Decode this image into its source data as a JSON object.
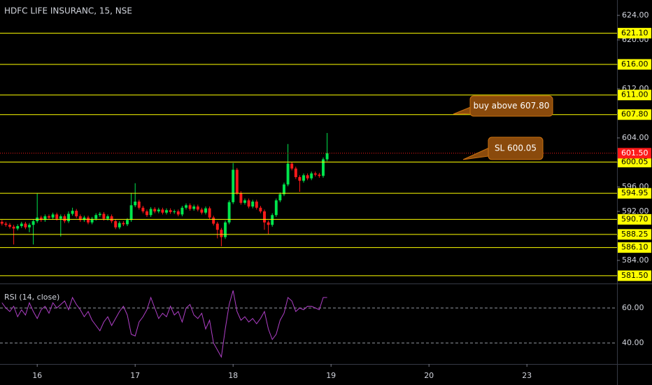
{
  "chart_data": [
    {
      "type": "candlestick",
      "title": "HDFC LIFE INSURANC, 15, NSE",
      "open": [
        590.3,
        590.0,
        589.8,
        589.5,
        589.2,
        589.6,
        590.0,
        589.4,
        589.8,
        590.4,
        591.0,
        590.6,
        591.2,
        591.0,
        591.5,
        590.8,
        591.2,
        590.4,
        591.6,
        592.1,
        591.2,
        590.6,
        591.0,
        590.2,
        590.8,
        591.4,
        591.6,
        590.8,
        591.2,
        590.4,
        589.4,
        590.1,
        589.9,
        590.6,
        593.0,
        593.6,
        592.6,
        592.0,
        591.4,
        592.4,
        592.0,
        592.3,
        591.8,
        592.2,
        591.9,
        592.0,
        591.5,
        592.6,
        593.0,
        592.4,
        592.8,
        592.3,
        591.8,
        592.5,
        591.0,
        590.0,
        589.0,
        587.8,
        590.2,
        593.5,
        598.8,
        595.0,
        593.4,
        593.8,
        592.8,
        593.6,
        592.6,
        592.0,
        590.2,
        589.8,
        591.4,
        593.8,
        594.8,
        596.4,
        599.8,
        599.0,
        597.6,
        597.0,
        597.9,
        597.4,
        598.2,
        598.0,
        597.8,
        600.5
      ],
      "high": [
        590.6,
        590.3,
        590.1,
        589.8,
        589.9,
        590.3,
        590.3,
        590.1,
        590.7,
        594.9,
        591.3,
        591.5,
        591.5,
        591.8,
        591.8,
        591.5,
        591.5,
        592.0,
        592.6,
        592.4,
        591.5,
        591.3,
        591.3,
        591.1,
        591.7,
        591.9,
        591.9,
        591.5,
        591.5,
        590.7,
        590.4,
        590.4,
        590.9,
        595.0,
        596.6,
        593.9,
        592.9,
        592.3,
        592.7,
        592.7,
        592.6,
        592.6,
        592.5,
        592.5,
        592.3,
        592.3,
        592.9,
        593.3,
        593.3,
        593.1,
        593.1,
        592.6,
        592.8,
        592.8,
        591.3,
        590.3,
        589.3,
        590.5,
        593.8,
        599.9,
        599.1,
        595.3,
        594.1,
        594.1,
        593.9,
        593.9,
        592.9,
        592.3,
        590.5,
        591.7,
        594.1,
        595.1,
        596.7,
        603.0,
        600.1,
        599.3,
        597.9,
        598.2,
        598.2,
        598.5,
        598.5,
        598.3,
        600.8,
        604.8
      ],
      "low": [
        589.7,
        589.5,
        589.2,
        586.6,
        588.9,
        589.3,
        589.1,
        588.6,
        586.6,
        590.1,
        590.3,
        590.3,
        590.7,
        590.7,
        590.5,
        587.9,
        590.1,
        590.1,
        591.3,
        590.9,
        590.3,
        590.3,
        589.9,
        589.9,
        590.5,
        591.1,
        590.5,
        590.5,
        590.1,
        589.1,
        589.1,
        589.6,
        589.6,
        590.3,
        592.7,
        592.3,
        591.7,
        591.1,
        591.1,
        591.7,
        591.7,
        591.5,
        591.5,
        591.6,
        591.6,
        591.2,
        591.2,
        592.3,
        592.1,
        592.1,
        592.0,
        591.5,
        591.5,
        590.7,
        589.7,
        587.6,
        586.3,
        587.5,
        589.9,
        593.2,
        594.7,
        593.1,
        593.1,
        592.5,
        592.5,
        592.3,
        591.7,
        589.0,
        588.3,
        589.5,
        591.1,
        593.5,
        594.5,
        596.1,
        598.7,
        597.3,
        595.2,
        596.7,
        597.1,
        597.1,
        597.7,
        597.5,
        597.5,
        600.2
      ],
      "close": [
        590.0,
        589.8,
        589.5,
        589.2,
        589.6,
        590.0,
        589.4,
        589.8,
        590.4,
        591.0,
        590.6,
        591.2,
        591.0,
        591.5,
        590.8,
        591.2,
        590.4,
        591.6,
        592.1,
        591.2,
        590.6,
        591.0,
        590.2,
        590.8,
        591.4,
        591.6,
        590.8,
        591.2,
        590.4,
        589.4,
        590.1,
        589.9,
        590.6,
        593.0,
        593.6,
        592.6,
        592.0,
        591.4,
        592.4,
        592.0,
        592.3,
        591.8,
        592.2,
        591.9,
        592.0,
        591.5,
        592.6,
        593.0,
        592.4,
        592.8,
        592.3,
        591.8,
        592.5,
        591.0,
        590.0,
        589.0,
        587.8,
        590.2,
        593.5,
        598.8,
        595.0,
        593.4,
        593.8,
        592.8,
        593.6,
        592.6,
        592.0,
        590.2,
        589.8,
        591.4,
        593.8,
        594.8,
        596.4,
        599.8,
        599.0,
        597.6,
        597.0,
        597.9,
        597.4,
        598.2,
        598.0,
        597.8,
        600.5,
        601.5
      ],
      "up_color": "#00e64d",
      "down_color": "#ff1a1a",
      "ylim": [
        580.23,
        626.51
      ],
      "yticks": [
        {
          "value": 624,
          "label": "624.00"
        },
        {
          "value": 620,
          "label": "620.00"
        },
        {
          "value": 616,
          "label": "616.00"
        },
        {
          "value": 612,
          "label": "612.00"
        },
        {
          "value": 608,
          "label": "608.00"
        },
        {
          "value": 604,
          "label": "604.00"
        },
        {
          "value": 600,
          "label": "600.00"
        },
        {
          "value": 596,
          "label": "596.00"
        },
        {
          "value": 592,
          "label": "592.00"
        },
        {
          "value": 588,
          "label": "588.00"
        },
        {
          "value": 584,
          "label": "584.00"
        }
      ],
      "xlim": [
        -0.5,
        157
      ],
      "xticks": [
        {
          "value": 9,
          "label": "16"
        },
        {
          "value": 34,
          "label": "17"
        },
        {
          "value": 59,
          "label": "18"
        },
        {
          "value": 84,
          "label": "19"
        },
        {
          "value": 109,
          "label": "20"
        },
        {
          "value": 134,
          "label": "23"
        }
      ],
      "levels": [
        {
          "value": 621.1,
          "label": "621.10"
        },
        {
          "value": 616,
          "label": "616.00"
        },
        {
          "value": 611,
          "label": "611.00"
        },
        {
          "value": 607.8,
          "label": "607.80"
        },
        {
          "value": 600.05,
          "label": "600.05"
        },
        {
          "value": 594.95,
          "label": "594.95"
        },
        {
          "value": 590.7,
          "label": "590.70"
        },
        {
          "value": 588.25,
          "label": "588.25"
        },
        {
          "value": 586.1,
          "label": "586.10"
        },
        {
          "value": 581.5,
          "label": "581.50"
        }
      ],
      "level_color": "#ffff00",
      "last_price": {
        "value": 601.5,
        "label": "601.50"
      },
      "annotations": [
        "buy above 607.80",
        "SL 600.05"
      ]
    },
    {
      "type": "line",
      "title": "RSI (14, close)",
      "values": [
        63,
        60,
        58,
        61,
        55,
        59,
        56,
        63,
        58,
        54,
        59,
        61,
        57,
        63,
        60,
        62,
        64,
        59,
        66,
        62,
        59,
        55,
        58,
        53,
        50,
        47,
        52,
        55,
        50,
        54,
        58,
        61,
        56,
        45,
        44,
        52,
        55,
        59,
        66,
        60,
        54,
        57,
        55,
        61,
        56,
        58,
        52,
        60,
        62,
        56,
        54,
        57,
        48,
        53,
        40,
        36,
        32,
        48,
        62,
        70,
        58,
        53,
        55,
        52,
        54,
        51,
        54,
        58,
        48,
        42,
        45,
        53,
        57,
        66,
        64,
        58,
        60,
        59,
        61,
        61,
        60,
        59,
        66,
        66
      ],
      "color": "#b040c8",
      "ylim": [
        28,
        73.2
      ],
      "yticks": [
        {
          "value": 60,
          "label": "60.00"
        },
        {
          "value": 40,
          "label": "40.00"
        }
      ],
      "xlim": [
        -0.5,
        157
      ]
    }
  ]
}
